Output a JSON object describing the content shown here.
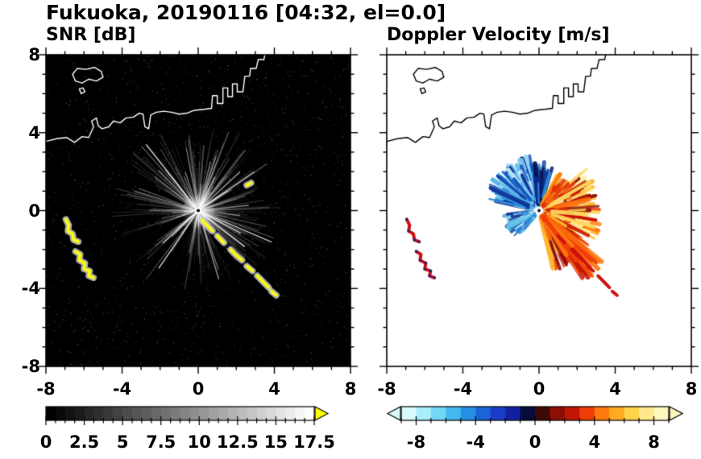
{
  "header": {
    "title": "Fukuoka, 20190116 [04:32, el=0.0]"
  },
  "chart_data": [
    {
      "type": "heatmap",
      "title": "SNR [dB]",
      "xlim": [
        -8,
        8
      ],
      "ylim": [
        -8,
        8
      ],
      "xticks": [
        -8,
        -4,
        0,
        4,
        8
      ],
      "yticks": [
        8,
        4,
        0,
        -4,
        -8
      ],
      "xtick_labels": [
        "-8",
        "-4",
        "0",
        "4",
        "8"
      ],
      "ytick_labels": [
        "8",
        "4",
        "0",
        "-4",
        "-8"
      ],
      "minor_tick_step": 1,
      "background": "#000000",
      "radar_center": [
        0,
        0
      ],
      "colorbar": {
        "min": 0,
        "max": 17.5,
        "tick_values": [
          0,
          2.5,
          5,
          7.5,
          10,
          12.5,
          15,
          17.5
        ],
        "tick_labels": [
          "0",
          "2.5",
          "5",
          "7.5",
          "10",
          "12.5",
          "15",
          "17.5"
        ],
        "minor_step": 0.625,
        "segments": 28,
        "start_color": "#000000",
        "end_color": "#ffffff",
        "over_arrow_color": "#ffff00"
      },
      "description": "Radial SNR streaks radiate from the radar at the origin over a black background; yellow sea-clutter arcs near (-6.6,-1) and (-5.9,-2.8) and a yellow echo band from (0.2,-0.5) to (4.1,-4.4); white coastline of the bay across the top of the panel."
    },
    {
      "type": "heatmap",
      "title": "Doppler Velocity [m/s]",
      "xlim": [
        -8,
        8
      ],
      "ylim": [
        -8,
        8
      ],
      "xticks": [
        -8,
        -4,
        0,
        4,
        8
      ],
      "yticks": [
        8,
        4,
        0,
        -4,
        -8
      ],
      "xtick_labels": [
        "-8",
        "-4",
        "0",
        "4",
        "8"
      ],
      "ytick_labels": [
        "8",
        "4",
        "0",
        "-4",
        "-8"
      ],
      "minor_tick_step": 1,
      "background": "#ffffff",
      "radar_center": [
        0,
        0
      ],
      "colorbar": {
        "min": -9,
        "max": 9,
        "tick_values": [
          -8,
          -4,
          0,
          4,
          8
        ],
        "tick_labels": [
          "-8",
          "-4",
          "0",
          "4",
          "8"
        ],
        "minor_step": 1,
        "segment_colors": [
          "#d8fbfd",
          "#a8eefb",
          "#72d8f6",
          "#44b8ef",
          "#2490e4",
          "#1b64d8",
          "#1a3cc8",
          "#1120a0",
          "#070b3e",
          "#3d0a06",
          "#8c0f06",
          "#c11505",
          "#ee3d05",
          "#ff7a0e",
          "#ffab22",
          "#ffd34a",
          "#ffe98c",
          "#fff7c0"
        ],
        "under_arrow_color": "#d8fbfd",
        "over_arrow_color": "#fff7c0"
      },
      "description": "Doppler velocity fan centered on the radar: negative velocities (cyan/blue/navy) toward the upper-left and above, positive velocities (dark red/red/orange/yellow) toward the right and lower-right; red clutter echoes at lower-left and along the lower-right band; black coastline."
    }
  ],
  "coast": {
    "mainland": [
      [
        -8,
        3.55
      ],
      [
        -7.4,
        3.7
      ],
      [
        -6.9,
        3.75
      ],
      [
        -6.5,
        3.5
      ],
      [
        -6.1,
        3.8
      ],
      [
        -5.75,
        3.75
      ],
      [
        -5.5,
        4.3
      ],
      [
        -5.6,
        4.6
      ],
      [
        -5.35,
        4.75
      ],
      [
        -5.25,
        4.35
      ],
      [
        -5.05,
        4.2
      ],
      [
        -4.7,
        4.3
      ],
      [
        -4.45,
        4.6
      ],
      [
        -4.1,
        4.5
      ],
      [
        -3.8,
        4.75
      ],
      [
        -3.4,
        4.8
      ],
      [
        -3.1,
        5.0
      ],
      [
        -2.9,
        4.95
      ],
      [
        -2.8,
        4.3
      ],
      [
        -2.6,
        4.2
      ],
      [
        -2.5,
        4.9
      ],
      [
        -2.2,
        5.05
      ],
      [
        -1.8,
        5.1
      ],
      [
        -1.4,
        5.05
      ],
      [
        -1.0,
        4.95
      ],
      [
        -0.6,
        5.0
      ],
      [
        -0.2,
        5.15
      ],
      [
        0.3,
        5.2
      ],
      [
        0.7,
        5.25
      ]
    ],
    "piers": [
      [
        0.7,
        5.25
      ],
      [
        0.75,
        5.9
      ],
      [
        1.0,
        5.9
      ],
      [
        1.0,
        5.5
      ],
      [
        1.3,
        5.5
      ],
      [
        1.3,
        6.3
      ],
      [
        1.55,
        6.3
      ],
      [
        1.55,
        5.85
      ],
      [
        1.8,
        5.85
      ],
      [
        1.8,
        6.5
      ],
      [
        2.05,
        6.5
      ],
      [
        2.05,
        6.1
      ],
      [
        2.35,
        6.1
      ],
      [
        2.45,
        6.9
      ],
      [
        2.7,
        6.9
      ],
      [
        2.75,
        7.3
      ],
      [
        3.05,
        7.3
      ],
      [
        3.15,
        7.75
      ],
      [
        3.45,
        7.75
      ],
      [
        3.5,
        8.0
      ]
    ],
    "island": [
      [
        -6.6,
        7.0
      ],
      [
        -6.35,
        7.3
      ],
      [
        -5.9,
        7.25
      ],
      [
        -5.45,
        7.35
      ],
      [
        -5.1,
        7.15
      ],
      [
        -5.0,
        6.85
      ],
      [
        -5.35,
        6.65
      ],
      [
        -5.75,
        6.75
      ],
      [
        -6.1,
        6.55
      ],
      [
        -6.45,
        6.65
      ],
      [
        -6.6,
        7.0
      ]
    ],
    "islet": [
      [
        -6.25,
        6.25
      ],
      [
        -6.05,
        6.3
      ],
      [
        -5.95,
        6.1
      ],
      [
        -6.15,
        6.0
      ],
      [
        -6.25,
        6.25
      ]
    ]
  },
  "clutter": {
    "arcs": [
      [
        [
          -6.95,
          -0.45
        ],
        [
          -6.8,
          -0.75
        ],
        [
          -6.85,
          -1.05
        ],
        [
          -6.6,
          -1.2
        ],
        [
          -6.55,
          -1.5
        ],
        [
          -6.3,
          -1.6
        ]
      ],
      [
        [
          -6.45,
          -2.1
        ],
        [
          -6.2,
          -2.25
        ],
        [
          -6.25,
          -2.55
        ],
        [
          -5.95,
          -2.7
        ],
        [
          -6.0,
          -3.0
        ],
        [
          -5.7,
          -3.1
        ],
        [
          -5.75,
          -3.35
        ],
        [
          -5.5,
          -3.45
        ]
      ]
    ],
    "band": [
      [
        [
          0.2,
          -0.5
        ],
        [
          0.5,
          -0.8
        ],
        [
          0.75,
          -1.05
        ]
      ],
      [
        [
          1.0,
          -1.3
        ],
        [
          1.35,
          -1.65
        ]
      ],
      [
        [
          1.7,
          -2.0
        ],
        [
          2.0,
          -2.3
        ],
        [
          2.3,
          -2.55
        ]
      ],
      [
        [
          2.55,
          -2.85
        ],
        [
          2.85,
          -3.1
        ]
      ],
      [
        [
          3.1,
          -3.35
        ],
        [
          3.45,
          -3.7
        ],
        [
          3.7,
          -3.95
        ]
      ],
      [
        [
          3.85,
          -4.15
        ],
        [
          4.1,
          -4.35
        ]
      ]
    ],
    "spot": [
      [
        2.55,
        1.3
      ],
      [
        2.78,
        1.42
      ]
    ]
  },
  "fan": {
    "sectors": [
      {
        "a0": 95,
        "a1": 168,
        "rmin": 0.5,
        "rmax": 2.9,
        "n": 240,
        "colors": [
          "#bfe9f7",
          "#8fd6f2",
          "#56b6ea",
          "#2e8fd8",
          "#1053c0",
          "#0a2f96"
        ]
      },
      {
        "a0": 72,
        "a1": 97,
        "rmin": 0.5,
        "rmax": 2.5,
        "n": 90,
        "colors": [
          "#071048",
          "#0c2a8e",
          "#123c9e",
          "#2e8fd8"
        ]
      },
      {
        "a0": 185,
        "a1": 232,
        "rmin": 0.4,
        "rmax": 1.9,
        "n": 110,
        "colors": [
          "#bfe9f7",
          "#6fc9ee",
          "#2e8fd8",
          "#0c2a8e"
        ]
      },
      {
        "a0": -78,
        "a1": 42,
        "rmin": 0.5,
        "rmax": 3.3,
        "n": 430,
        "colors": [
          "#8c0b04",
          "#c61505",
          "#f23d08",
          "#ff7a12",
          "#ffb52e",
          "#ffd95e",
          "#ffef9a"
        ]
      },
      {
        "a0": -60,
        "a1": -38,
        "rmin": 2.5,
        "rmax": 4.5,
        "n": 55,
        "colors": [
          "#c61505",
          "#f23d08",
          "#ff7a12"
        ]
      },
      {
        "a0": 40,
        "a1": 62,
        "rmin": 0.5,
        "rmax": 2.2,
        "n": 60,
        "colors": [
          "#ff7a12",
          "#ffb52e",
          "#e03008"
        ]
      }
    ]
  },
  "snr_field": {
    "noise_dots": 2600,
    "streak_count": 430,
    "bright_ray_count": 14,
    "dark_wedges": [
      [
        200,
        214
      ],
      [
        238,
        252
      ]
    ],
    "thin_rays": [
      {
        "angle": 235,
        "len": 3.6
      },
      {
        "angle": 222,
        "len": 2.5
      }
    ]
  },
  "colors": {
    "coast_left": "#ffffff",
    "coast_right": "#000000",
    "clutter_left": "#ffff00",
    "clutter_halo": "#d7d7d7",
    "clutter_right": "#cc1111",
    "clutter_right_accent": "#13247e",
    "streak": "#ffffff",
    "frame": "#000000"
  }
}
